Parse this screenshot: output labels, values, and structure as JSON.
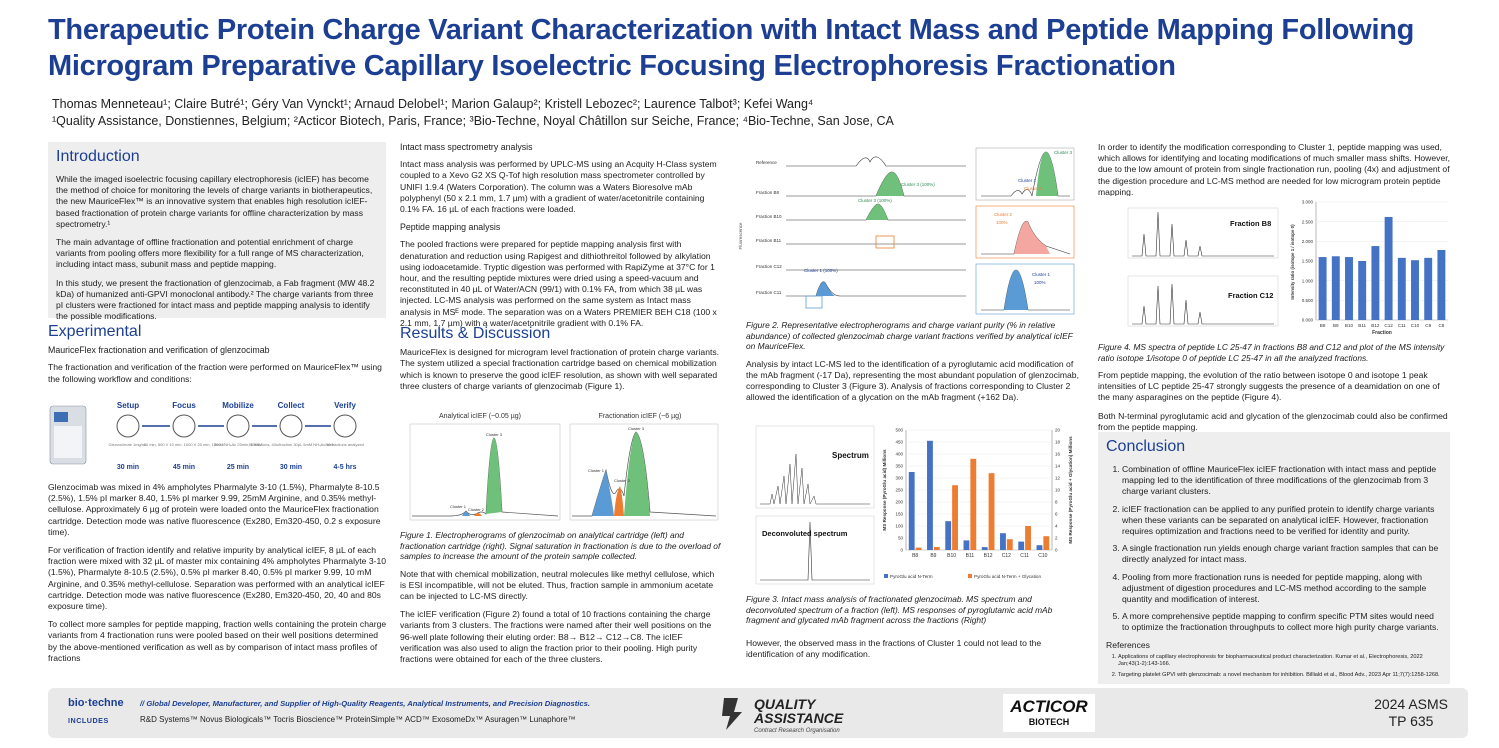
{
  "title": "Therapeutic Protein Charge Variant Characterization with Intact Mass and Peptide Mapping Following Microgram Preparative Capillary Isoelectric Focusing Electrophoresis Fractionation",
  "authors": "Thomas Menneteau¹; Claire Butré¹; Géry Van Vynckt¹; Arnaud Delobel¹; Marion Galaup²; Kristell Lebozec²; Laurence Talbot³; Kefei Wang⁴",
  "affiliations": "¹Quality Assistance, Donstiennes, Belgium; ²Acticor Biotech, Paris, France; ³Bio-Techne, Noyal Châtillon sur Seiche, France; ⁴Bio-Techne, San Jose, CA",
  "intro": {
    "heading": "Introduction",
    "p1": "While the imaged isoelectric focusing capillary electrophoresis (icIEF) has become the method of choice for monitoring the levels of charge variants in biotherapeutics, the new MauriceFlex™ is an innovative system that enables high resolution icIEF-based fractionation of protein charge variants for offline characterization by mass spectrometry.¹",
    "p2": "The main advantage of offline fractionation and potential enrichment of charge variants from pooling offers more flexibility for a full range of MS characterization, including intact mass, subunit mass and peptide mapping.",
    "p3": "In this study, we present the fractionation of glenzocimab, a Fab fragment (MW 48.2 kDa) of humanized anti-GPVI monoclonal antibody.² The charge variants from three pI clusters were fractioned for intact mass and peptide mapping analysis to identify the possible modifications."
  },
  "experimental": {
    "heading": "Experimental",
    "sub1": "MauriceFlex fractionation and verification of glenzocimab",
    "p1": "The fractionation and verification of the fraction were performed on MauriceFlex™ using the following workflow and conditions:",
    "workflow": {
      "steps": [
        {
          "label": "Setup",
          "detail": "Glenzocimab 1mg/mL",
          "time": "30 min"
        },
        {
          "label": "Focus",
          "detail": "10 min, 500 V 10 min, 1000 V 25 min, 1500 V",
          "time": "45 min"
        },
        {
          "label": "Mobilize",
          "detail": "5mM NH₄Ac 25min, 1000V",
          "time": "25 min"
        },
        {
          "label": "Collect",
          "detail": "96 fractions, 40s/fraction 30µL 5mM NH₄Ac/well",
          "time": "30 min"
        },
        {
          "label": "Verify",
          "detail": "10 fractions analyzed",
          "time": "4-5 hrs"
        }
      ],
      "device_label": "MauriceFlex"
    },
    "p2": "Glenzocimab was mixed in 4% ampholytes Pharmalyte 3-10 (1.5%), Pharmalyte 8-10.5 (2.5%), 1.5% pI marker 8.40, 1.5% pI marker 9.99, 25mM Arginine, and 0.35% methyl-cellulose. Approximately 6 µg of protein were loaded onto the MauriceFlex fractionation cartridge. Detection mode was native fluorescence (Ex280, Em320-450, 0.2 s exposure time).",
    "p3": "For verification of fraction identify and relative impurity by analytical icIEF, 8 µL of each fraction were mixed with 32 µL of master mix containing 4% ampholytes Pharmalyte 3-10 (1.5%), Pharmalyte 8-10.5 (2.5%), 0.5% pI marker 8.40, 0.5% pI marker 9.99, 10 mM Arginine, and 0.35% methyl-cellulose. Separation was performed with an analytical icIEF cartridge. Detection mode was native fluorescence (Ex280, Em320-450, 20, 40 and 80s exposure time).",
    "p4": "To collect more samples for peptide mapping, fraction wells containing the protein charge variants from 4 fractionation runs were pooled based on their well positions determined by the above-mentioned verification as well as by comparison of intact mass profiles of fractions"
  },
  "methods": {
    "intact_head": "Intact mass spectrometry analysis",
    "intact_p": "Intact mass analysis was performed by UPLC-MS using an Acquity H-Class system coupled to a Xevo G2 XS Q-Tof high resolution mass spectrometer controlled by UNIFI 1.9.4 (Waters Corporation). The column was a Waters Bioresolve mAb polyphenyl (50 x 2.1 mm, 1.7 µm) with a gradient of water/acetonitrile containing 0.1% FA. 16 µL of each fractions were loaded.",
    "pep_head": "Peptide mapping analysis",
    "pep_p": "The pooled fractions were prepared for peptide mapping analysis first with denaturation and reduction using Rapigest and dithiothreitol followed by alkylation using iodoacetamide. Tryptic digestion was performed with RapiZyme at 37°C for 1 hour, and the resulting peptide mixtures were dried using a speed-vacuum and reconstituted in 40 µL of Water/ACN (99/1) with 0.1% FA, from which 38 µL was injected. LC-MS analysis was performed on the same system as Intact mass analysis in MSᴱ mode. The separation was on a Waters PREMIER BEH C18 (100 x 2.1 mm, 1.7 µm) with a water/acetonitrile gradient with 0.1% FA."
  },
  "results": {
    "heading": "Results & Discussion",
    "p1": "MauriceFlex is designed for microgram level fractionation of protein charge variants. The system utilized a special fractionation cartridge based on chemical mobilization which is known to preserve the good icIEF resolution, as shown with well separated three clusters of charge variants of glenzocimab (Figure 1).",
    "fig1": {
      "left_title": "Analytical icIEF (~0.05 µg)",
      "right_title": "Fractionation icIEF (~6 µg)",
      "labels": [
        "Cluster 1",
        "Cluster 2",
        "Cluster 3"
      ],
      "caption": "Figure 1. Electropherograms of glenzocimab on analytical cartridge (left) and fractionation cartridge (right). Signal saturation in fractionation is due to the overload of samples to increase the amount of the protein sample collected."
    },
    "p2": "Note that with chemical mobilization, neutral molecules like methyl cellulose, which is ESI incompatible, will not be eluted. Thus, fraction sample in ammonium acetate can be injected to LC-MS directly.",
    "p3": "The icIEF verification (Figure 2) found a total of 10 fractions containing the charge variants from 3 clusters. The fractions were named after their well positions on the 96-well plate following their eluting order: B8→ B12→ C12→C8. The icIEF verification was also used to align the fraction prior to their pooling. High purity fractions were obtained for each of the three clusters."
  },
  "fig2": {
    "traces": [
      "Reference",
      "Fraction B8",
      "Fraction B10",
      "Fraction B11",
      "Fraction C12",
      "Fraction C11"
    ],
    "insets": [
      {
        "title": "Cluster 3",
        "labels": [
          "Cluster 1",
          "Cluster 2"
        ]
      },
      {
        "title": "Cluster 2",
        "value": "100%"
      },
      {
        "title": "Cluster 1",
        "value": "100%"
      }
    ],
    "annot": [
      "Cluster 3 (100%)",
      "Cluster 3 (100%)",
      "Cluster 1 (100%)"
    ],
    "ylabel": "Fluorescence",
    "caption": "Figure 2. Representative electropherograms and charge variant purity (% in relative abundance) of collected glenzocimab charge variant fractions verified by analytical icIEF on MauriceFlex."
  },
  "mid": {
    "p1": "Analysis by intact LC-MS led to the identification of a pyroglutamic acid modification of the mAb fragment (-17 Da), representing the most abundant population of glenzocimab, corresponding to Cluster 3 (Figure 3). Analysis of fractions corresponding to Cluster 2 allowed the identification of a glycation on the mAb fragment (+162 Da).",
    "fig3_spectrum": "Spectrum",
    "fig3_decon": "Deconvoluted spectrum",
    "fig3_caption": "Figure 3. Intact mass analysis of fractionated glenzocimab. MS spectrum and deconvoluted spectrum of a fraction (left). MS responses of pyroglutamic acid mAb fragment and glycated mAb fragment across the fractions (Right)",
    "p2": "However, the observed mass in the fractions of Cluster 1 could not lead to the identification of any modification."
  },
  "chart_data": [
    {
      "type": "bar",
      "categories": [
        "B8",
        "B9",
        "B10",
        "B11",
        "B12",
        "C12",
        "C11",
        "C10"
      ],
      "ylabel": "MS Response (PyroGlu acid) Millions",
      "y2label": "MS Response (PyroGlu acid + Glycation) Millions",
      "ylim": [
        0,
        500
      ],
      "y2lim": [
        0,
        20
      ],
      "series": [
        {
          "name": "PyroGlu acid N-Term",
          "color": "#4472c4",
          "axis": "left",
          "values": [
            325,
            455,
            120,
            40,
            12,
            70,
            35,
            20
          ]
        },
        {
          "name": "PyroGlu acid N-Term + Glycation",
          "color": "#ed7d31",
          "axis": "right",
          "values": [
            0.4,
            0.5,
            10.8,
            15.2,
            12.8,
            1.8,
            4.0,
            2.3
          ]
        }
      ],
      "legend": "bottom"
    },
    {
      "type": "bar",
      "categories": [
        "B8",
        "B9",
        "B10",
        "B11",
        "B12",
        "C12",
        "C11",
        "C10",
        "C9",
        "C8"
      ],
      "ylabel": "Intensity ratio (isotope 1 / isotope 0)",
      "xlabel": "Fraction",
      "ylim": [
        0,
        3.0
      ],
      "series": [
        {
          "name": "ratio",
          "color": "#4472c4",
          "values": [
            1.6,
            1.62,
            1.6,
            1.5,
            1.88,
            2.62,
            1.58,
            1.52,
            1.58,
            1.78
          ]
        }
      ]
    }
  ],
  "fig4": {
    "label_b8": "Fraction B8",
    "label_c12": "Fraction C12",
    "caption": "Figure 4. MS spectra of peptide LC 25-47 in fractions B8 and C12 and plot of the MS intensity ratio isotope 1/isotope 0 of peptide LC 25-47 in all the analyzed fractions."
  },
  "right": {
    "p1": "In order to identify the modification corresponding to Cluster 1, peptide mapping was used, which allows for identifying and locating modifications of much smaller mass shifts. However, due to the low amount of protein from single fractionation run, pooling (4x) and adjustment of the digestion procedure and LC-MS method are needed for low microgram protein peptide mapping.",
    "p2": "From peptide mapping, the evolution of the ratio between isotope 0 and isotope 1 peak intensities of LC peptide 25-47 strongly suggests the presence of a deamidation on one of the many asparagines on the peptide (Figure 4).",
    "p3": "Both N-terminal pyroglutamic acid and glycation of the glenzocimab could also be confirmed from the peptide mapping."
  },
  "conclusion": {
    "heading": "Conclusion",
    "items": [
      "Combination of offline MauriceFlex icIEF fractionation with intact mass and peptide mapping led to the identification of three modifications of the glenzocimab from 3 charge variant clusters.",
      "icIEF fractionation can be applied to any purified protein to identify charge variants when these variants can be separated on analytical icIEF. However, fractionation requires optimization and fractions need to be verified for identity and purity.",
      "A single fractionation run yields enough charge variant fraction samples that can be directly analyzed for intact mass.",
      "Pooling from more fractionation runs is needed for peptide mapping, along with adjustment of digestion procedures and LC-MS method according to the sample quantity and modification of interest.",
      "A more comprehensive peptide mapping to confirm specific PTM sites would need to optimize the fractionation throughputs to collect more high purity charge variants."
    ],
    "refs_head": "References",
    "refs": [
      "Applications of capillary electrophoresis for biopharmaceutical product characterization. Kumar et al., Electrophoresis, 2022 Jan;43(1-2):143-166.",
      "Targeting platelet GPVI with glenzocimab: a novel mechanism for inhibition. Billiald et al., Blood Adv., 2023 Apr 11;7(7):1258-1268."
    ]
  },
  "footer": {
    "brand": "bio·techne",
    "slogan": "// Global Developer, Manufacturer, and Supplier of High-Quality Reagents, Analytical Instruments, and Precision Diagnostics.",
    "includes": "INCLUDES",
    "brands": "R&D Systems™   Novus Biologicals™   Tocris Bioscience™   ProteinSimple™   ACD™   ExosomeDx™   Asuragen™   Lunaphore™",
    "qa1": "QUALITY",
    "qa2": "ASSISTANCE",
    "qa3": "Contract Research Organisation",
    "acticor1": "ACTICOR",
    "acticor2": "BIOTECH",
    "asms1": "2024 ASMS",
    "asms2": "TP 635"
  }
}
